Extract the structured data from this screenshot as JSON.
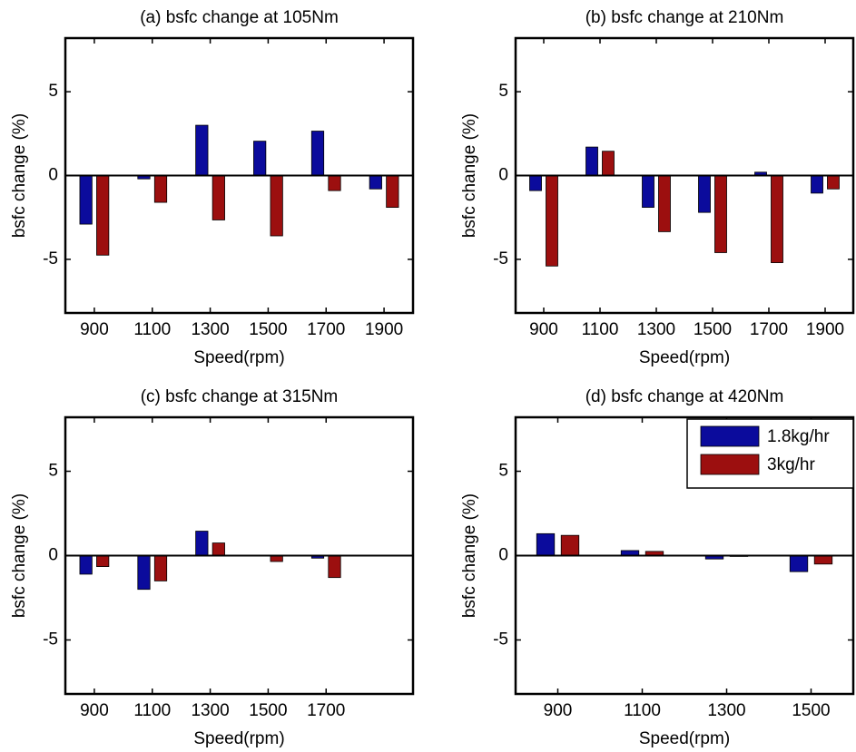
{
  "chart_data": [
    {
      "type": "bar",
      "title": "(a) bsfc change at 105Nm",
      "xlabel": "Speed(rpm)",
      "ylabel": "bsfc change (%)",
      "categories": [
        900,
        1100,
        1300,
        1500,
        1700,
        1900
      ],
      "series": [
        {
          "color": "#0b0b9c",
          "values": [
            -2.9,
            -0.2,
            3.0,
            2.05,
            2.65,
            -0.8
          ]
        },
        {
          "color": "#9c0f0f",
          "values": [
            -4.75,
            -1.6,
            -2.65,
            -3.6,
            -0.9,
            -1.9
          ]
        }
      ],
      "ylim": [
        -8.2,
        8.2
      ],
      "yticks": [
        -5,
        0,
        5
      ]
    },
    {
      "type": "bar",
      "title": "(b) bsfc change at 210Nm",
      "xlabel": "Speed(rpm)",
      "ylabel": "bsfc change (%)",
      "categories": [
        900,
        1100,
        1300,
        1500,
        1700,
        1900
      ],
      "series": [
        {
          "color": "#0b0b9c",
          "values": [
            -0.9,
            1.7,
            -1.9,
            -2.2,
            0.2,
            -1.05
          ]
        },
        {
          "color": "#9c0f0f",
          "values": [
            -5.4,
            1.45,
            -3.35,
            -4.6,
            -5.2,
            -0.8
          ]
        }
      ],
      "ylim": [
        -8.2,
        8.2
      ],
      "yticks": [
        -5,
        0,
        5
      ]
    },
    {
      "type": "bar",
      "title": "(c) bsfc change at 315Nm",
      "xlabel": "Speed(rpm)",
      "ylabel": "bsfc change (%)",
      "categories": [
        900,
        1100,
        1300,
        1500,
        1700,
        null
      ],
      "series": [
        {
          "color": "#0b0b9c",
          "values": [
            -1.1,
            -2.0,
            1.45,
            0,
            -0.15,
            null
          ]
        },
        {
          "color": "#9c0f0f",
          "values": [
            -0.65,
            -1.5,
            0.75,
            -0.35,
            -1.3,
            null
          ]
        }
      ],
      "ylim": [
        -8.2,
        8.2
      ],
      "yticks": [
        -5,
        0,
        5
      ]
    },
    {
      "type": "bar",
      "title": "(d) bsfc change at 420Nm",
      "xlabel": "Speed(rpm)",
      "ylabel": "bsfc change (%)",
      "categories": [
        900,
        1100,
        1300,
        1500
      ],
      "series": [
        {
          "name": "1.8kg/hr",
          "color": "#0b0b9c",
          "values": [
            1.3,
            0.3,
            -0.2,
            -0.95
          ]
        },
        {
          "name": "3kg/hr",
          "color": "#9c0f0f",
          "values": [
            1.2,
            0.25,
            -0.05,
            -0.5
          ]
        }
      ],
      "ylim": [
        -8.2,
        8.2
      ],
      "yticks": [
        -5,
        0,
        5
      ],
      "legend": "upper right"
    }
  ]
}
